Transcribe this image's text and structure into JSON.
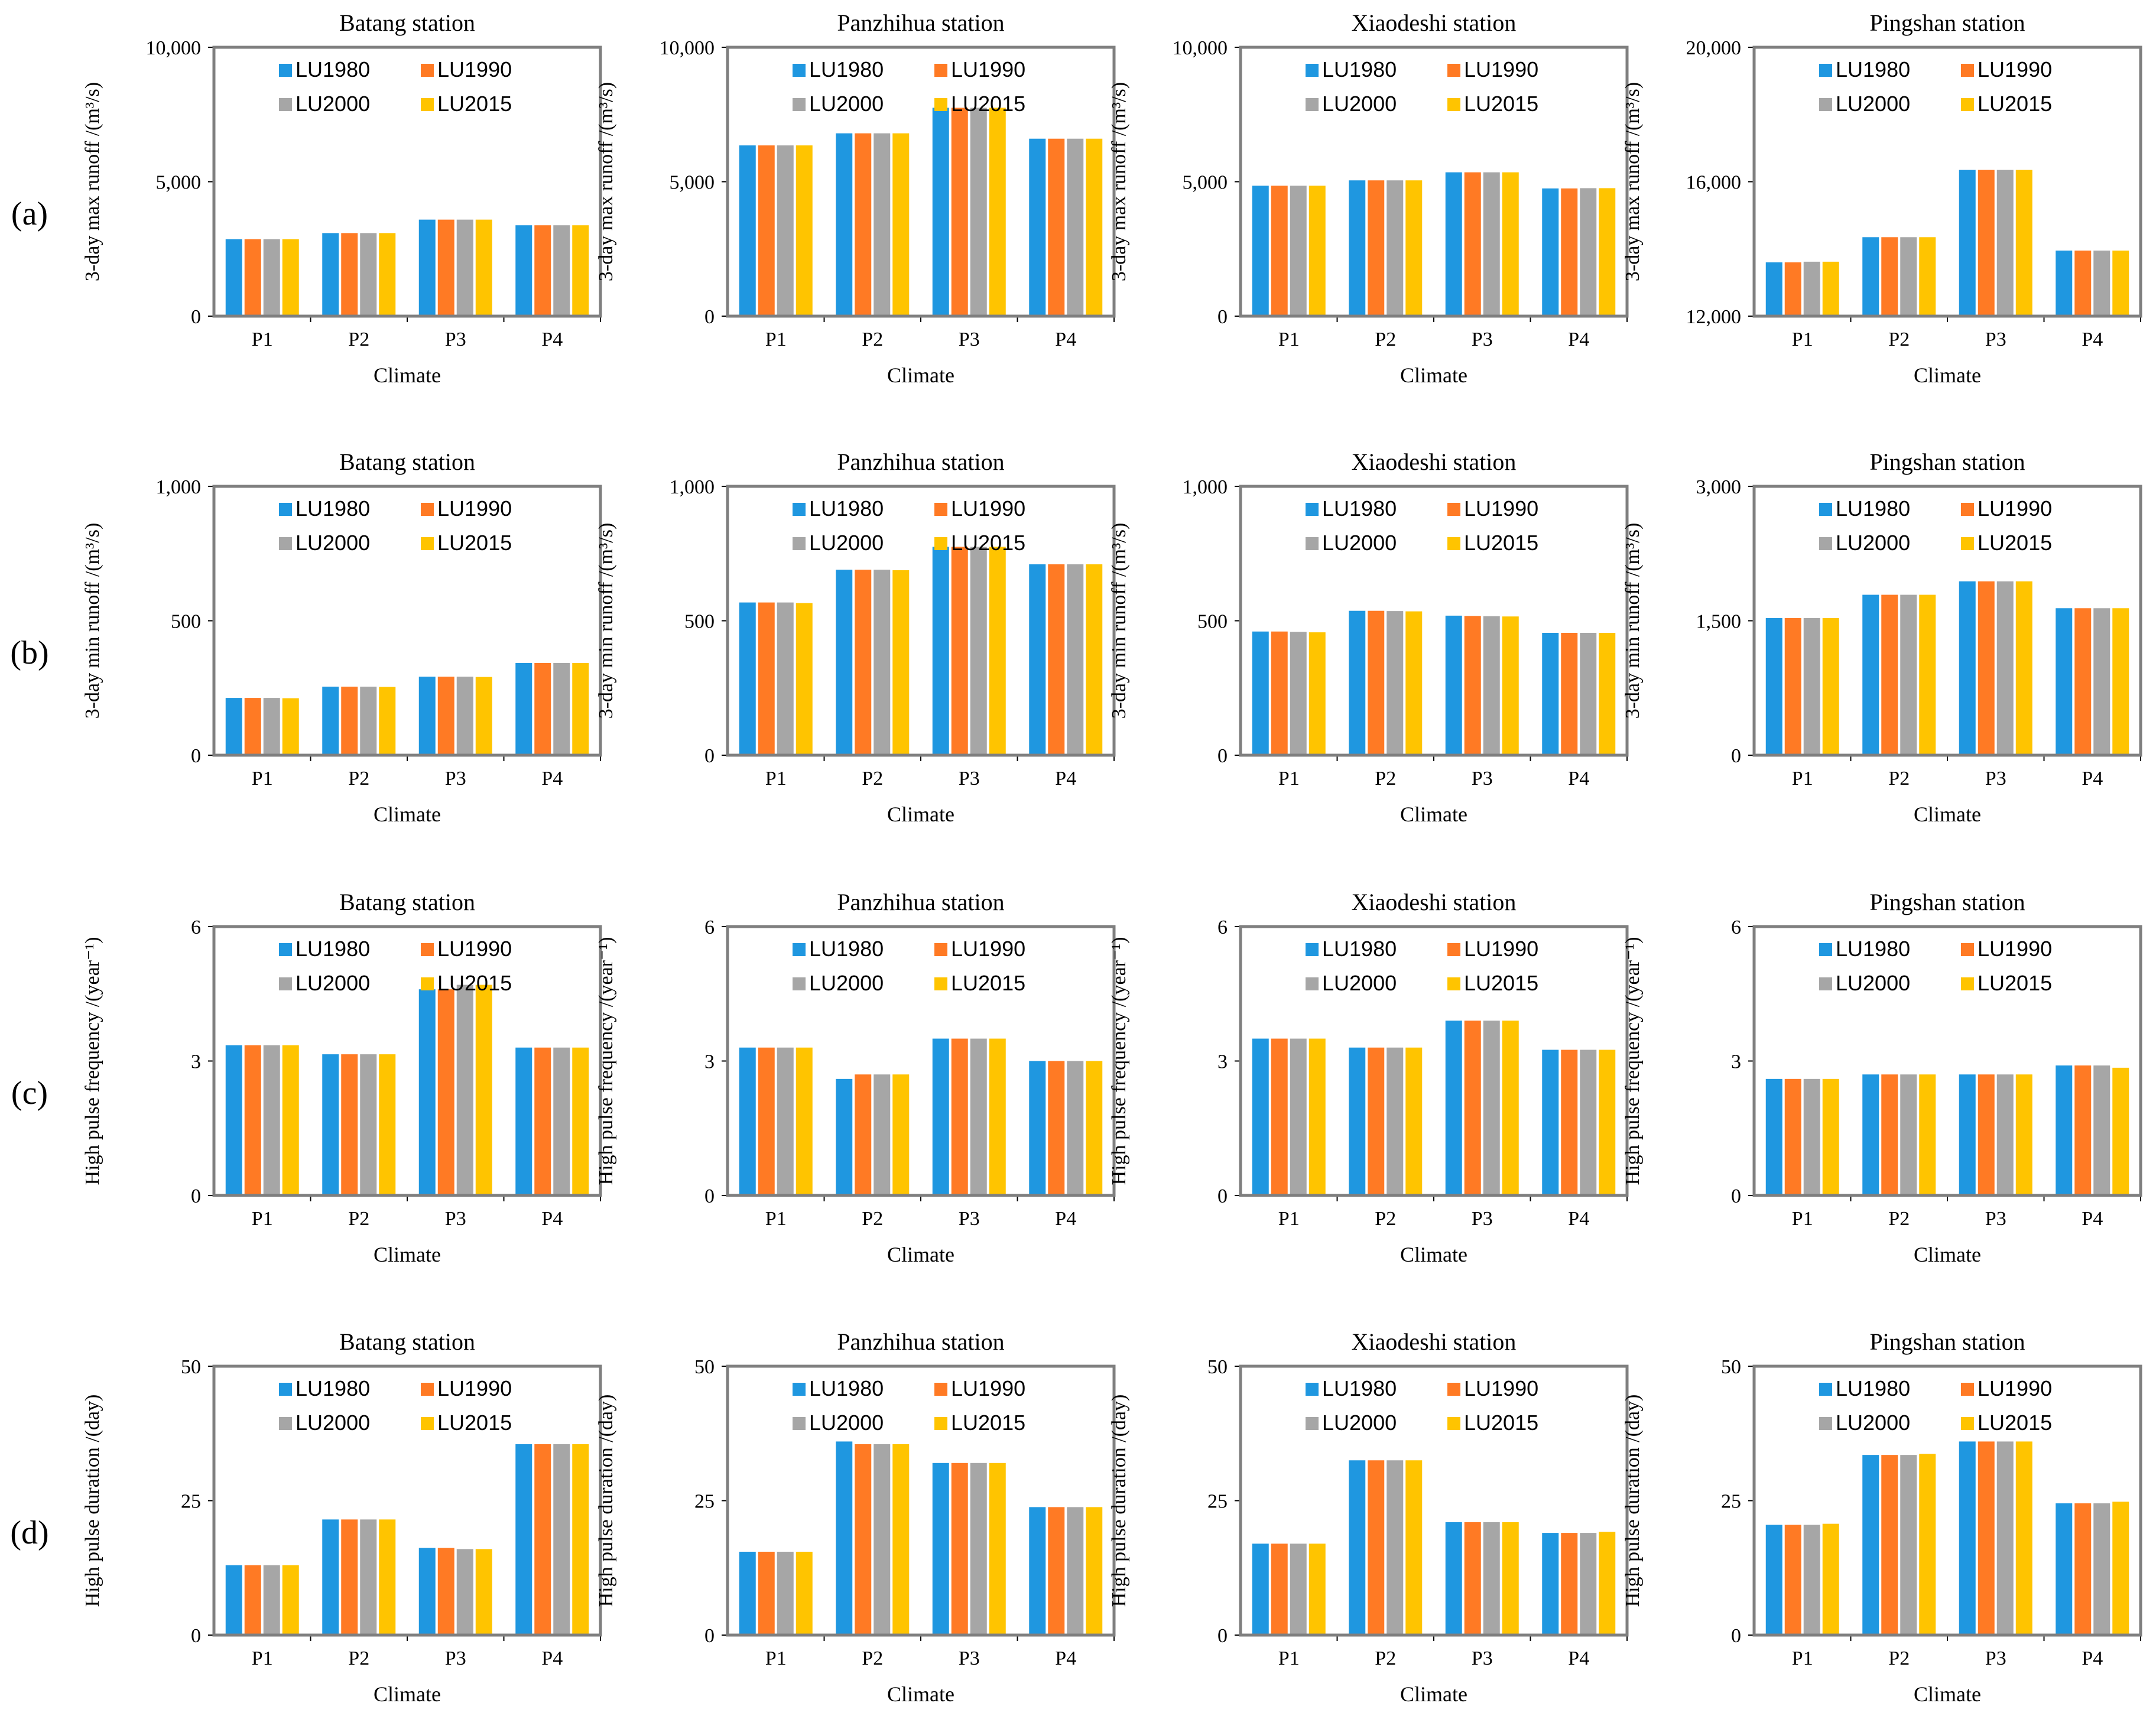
{
  "figure": {
    "row_labels": [
      "(a)",
      "(b)",
      "(c)",
      "(d)"
    ],
    "colors": {
      "LU1980": "#1f97e0",
      "LU1990": "#ff7a24",
      "LU2000": "#a6a6a6",
      "LU2015": "#ffc400"
    }
  },
  "chart_data": [
    {
      "type": "bar",
      "title": "Batang station",
      "xlabel": "Climate",
      "ylabel": "3-day max runoff /(m³/s)",
      "ylim": [
        0,
        10000
      ],
      "yticks": [
        0,
        5000,
        10000
      ],
      "ytick_labels": [
        "0",
        "5,000",
        "10,000"
      ],
      "categories": [
        "P1",
        "P2",
        "P3",
        "P4"
      ],
      "series": [
        {
          "name": "LU1980",
          "values": [
            2860,
            3090,
            3590,
            3380
          ]
        },
        {
          "name": "LU1990",
          "values": [
            2860,
            3090,
            3590,
            3380
          ]
        },
        {
          "name": "LU2000",
          "values": [
            2860,
            3090,
            3590,
            3380
          ]
        },
        {
          "name": "LU2015",
          "values": [
            2860,
            3090,
            3590,
            3380
          ]
        }
      ],
      "legend": "top"
    },
    {
      "type": "bar",
      "title": "Panzhihua station",
      "xlabel": "Climate",
      "ylabel": "3-day max runoff /(m³/s)",
      "ylim": [
        0,
        10000
      ],
      "yticks": [
        0,
        5000,
        10000
      ],
      "ytick_labels": [
        "0",
        "5,000",
        "10,000"
      ],
      "categories": [
        "P1",
        "P2",
        "P3",
        "P4"
      ],
      "series": [
        {
          "name": "LU1980",
          "values": [
            6350,
            6800,
            7750,
            6600
          ]
        },
        {
          "name": "LU1990",
          "values": [
            6350,
            6800,
            7750,
            6600
          ]
        },
        {
          "name": "LU2000",
          "values": [
            6350,
            6800,
            7750,
            6600
          ]
        },
        {
          "name": "LU2015",
          "values": [
            6350,
            6800,
            7750,
            6600
          ]
        }
      ],
      "legend": "top"
    },
    {
      "type": "bar",
      "title": "Xiaodeshi station",
      "xlabel": "Climate",
      "ylabel": "3-day max runoff /(m³/s)",
      "ylim": [
        0,
        10000
      ],
      "yticks": [
        0,
        5000,
        10000
      ],
      "ytick_labels": [
        "0",
        "5,000",
        "10,000"
      ],
      "categories": [
        "P1",
        "P2",
        "P3",
        "P4"
      ],
      "series": [
        {
          "name": "LU1980",
          "values": [
            4850,
            5050,
            5350,
            4750
          ]
        },
        {
          "name": "LU1990",
          "values": [
            4850,
            5050,
            5350,
            4750
          ]
        },
        {
          "name": "LU2000",
          "values": [
            4850,
            5050,
            5350,
            4760
          ]
        },
        {
          "name": "LU2015",
          "values": [
            4850,
            5050,
            5350,
            4760
          ]
        }
      ],
      "legend": "top"
    },
    {
      "type": "bar",
      "title": "Pingshan station",
      "xlabel": "Climate",
      "ylabel": "3-day max runoff /(m³/s)",
      "ylim": [
        12000,
        20000
      ],
      "yticks": [
        12000,
        16000,
        20000
      ],
      "ytick_labels": [
        "12,000",
        "16,000",
        "20,000"
      ],
      "categories": [
        "P1",
        "P2",
        "P3",
        "P4"
      ],
      "series": [
        {
          "name": "LU1980",
          "values": [
            13600,
            14350,
            16350,
            13950
          ]
        },
        {
          "name": "LU1990",
          "values": [
            13600,
            14350,
            16350,
            13950
          ]
        },
        {
          "name": "LU2000",
          "values": [
            13620,
            14350,
            16350,
            13950
          ]
        },
        {
          "name": "LU2015",
          "values": [
            13620,
            14350,
            16350,
            13950
          ]
        }
      ],
      "legend": "top"
    },
    {
      "type": "bar",
      "title": "Batang station",
      "xlabel": "Climate",
      "ylabel": "3-day min runoff /(m³/s)",
      "ylim": [
        0,
        1000
      ],
      "yticks": [
        0,
        500,
        1000
      ],
      "ytick_labels": [
        "0",
        "500",
        "1,000"
      ],
      "categories": [
        "P1",
        "P2",
        "P3",
        "P4"
      ],
      "series": [
        {
          "name": "LU1980",
          "values": [
            213,
            255,
            292,
            343
          ]
        },
        {
          "name": "LU1990",
          "values": [
            213,
            255,
            292,
            343
          ]
        },
        {
          "name": "LU2000",
          "values": [
            213,
            255,
            292,
            343
          ]
        },
        {
          "name": "LU2015",
          "values": [
            212,
            254,
            291,
            343
          ]
        }
      ],
      "legend": "top"
    },
    {
      "type": "bar",
      "title": "Panzhihua station",
      "xlabel": "Climate",
      "ylabel": "3-day min runoff /(m³/s)",
      "ylim": [
        0,
        1000
      ],
      "yticks": [
        0,
        500,
        1000
      ],
      "ytick_labels": [
        "0",
        "500",
        "1,000"
      ],
      "categories": [
        "P1",
        "P2",
        "P3",
        "P4"
      ],
      "series": [
        {
          "name": "LU1980",
          "values": [
            568,
            690,
            775,
            710
          ]
        },
        {
          "name": "LU1990",
          "values": [
            568,
            690,
            775,
            710
          ]
        },
        {
          "name": "LU2000",
          "values": [
            568,
            690,
            775,
            710
          ]
        },
        {
          "name": "LU2015",
          "values": [
            566,
            688,
            775,
            710
          ]
        }
      ],
      "legend": "top"
    },
    {
      "type": "bar",
      "title": "Xiaodeshi station",
      "xlabel": "Climate",
      "ylabel": "3-day min runoff /(m³/s)",
      "ylim": [
        0,
        1000
      ],
      "yticks": [
        0,
        500,
        1000
      ],
      "ytick_labels": [
        "0",
        "500",
        "1,000"
      ],
      "categories": [
        "P1",
        "P2",
        "P3",
        "P4"
      ],
      "series": [
        {
          "name": "LU1980",
          "values": [
            460,
            537,
            519,
            455
          ]
        },
        {
          "name": "LU1990",
          "values": [
            460,
            537,
            518,
            455
          ]
        },
        {
          "name": "LU2000",
          "values": [
            459,
            536,
            517,
            455
          ]
        },
        {
          "name": "LU2015",
          "values": [
            457,
            535,
            516,
            455
          ]
        }
      ],
      "legend": "top"
    },
    {
      "type": "bar",
      "title": "Pingshan station",
      "xlabel": "Climate",
      "ylabel": "3-day min runoff /(m³/s)",
      "ylim": [
        0,
        3000
      ],
      "yticks": [
        0,
        1500,
        3000
      ],
      "ytick_labels": [
        "0",
        "1,500",
        "3,000"
      ],
      "categories": [
        "P1",
        "P2",
        "P3",
        "P4"
      ],
      "series": [
        {
          "name": "LU1980",
          "values": [
            1530,
            1790,
            1940,
            1640
          ]
        },
        {
          "name": "LU1990",
          "values": [
            1530,
            1790,
            1940,
            1640
          ]
        },
        {
          "name": "LU2000",
          "values": [
            1530,
            1790,
            1940,
            1640
          ]
        },
        {
          "name": "LU2015",
          "values": [
            1530,
            1790,
            1940,
            1640
          ]
        }
      ],
      "legend": "top"
    },
    {
      "type": "bar",
      "title": "Batang station",
      "xlabel": "Climate",
      "ylabel": "High pulse frequency /(year⁻¹)",
      "ylim": [
        0,
        6
      ],
      "yticks": [
        0,
        3,
        6
      ],
      "ytick_labels": [
        "0",
        "3",
        "6"
      ],
      "categories": [
        "P1",
        "P2",
        "P3",
        "P4"
      ],
      "series": [
        {
          "name": "LU1980",
          "values": [
            3.35,
            3.15,
            4.6,
            3.3
          ]
        },
        {
          "name": "LU1990",
          "values": [
            3.35,
            3.15,
            4.6,
            3.3
          ]
        },
        {
          "name": "LU2000",
          "values": [
            3.35,
            3.15,
            4.7,
            3.3
          ]
        },
        {
          "name": "LU2015",
          "values": [
            3.35,
            3.15,
            4.7,
            3.3
          ]
        }
      ],
      "legend": "top"
    },
    {
      "type": "bar",
      "title": "Panzhihua station",
      "xlabel": "Climate",
      "ylabel": "High pulse frequency /(year⁻¹)",
      "ylim": [
        0,
        6
      ],
      "yticks": [
        0,
        3,
        6
      ],
      "ytick_labels": [
        "0",
        "3",
        "6"
      ],
      "categories": [
        "P1",
        "P2",
        "P3",
        "P4"
      ],
      "series": [
        {
          "name": "LU1980",
          "values": [
            3.3,
            2.6,
            3.5,
            3.0
          ]
        },
        {
          "name": "LU1990",
          "values": [
            3.3,
            2.7,
            3.5,
            3.0
          ]
        },
        {
          "name": "LU2000",
          "values": [
            3.3,
            2.7,
            3.5,
            3.0
          ]
        },
        {
          "name": "LU2015",
          "values": [
            3.3,
            2.7,
            3.5,
            3.0
          ]
        }
      ],
      "legend": "top"
    },
    {
      "type": "bar",
      "title": "Xiaodeshi station",
      "xlabel": "Climate",
      "ylabel": "High pulse frequency /(year⁻¹)",
      "ylim": [
        0,
        6
      ],
      "yticks": [
        0,
        3,
        6
      ],
      "ytick_labels": [
        "0",
        "3",
        "6"
      ],
      "categories": [
        "P1",
        "P2",
        "P3",
        "P4"
      ],
      "series": [
        {
          "name": "LU1980",
          "values": [
            3.5,
            3.3,
            3.9,
            3.25
          ]
        },
        {
          "name": "LU1990",
          "values": [
            3.5,
            3.3,
            3.9,
            3.25
          ]
        },
        {
          "name": "LU2000",
          "values": [
            3.5,
            3.3,
            3.9,
            3.25
          ]
        },
        {
          "name": "LU2015",
          "values": [
            3.5,
            3.3,
            3.9,
            3.25
          ]
        }
      ],
      "legend": "top"
    },
    {
      "type": "bar",
      "title": "Pingshan station",
      "xlabel": "Climate",
      "ylabel": "High pulse frequency /(year⁻¹)",
      "ylim": [
        0,
        6
      ],
      "yticks": [
        0,
        3,
        6
      ],
      "ytick_labels": [
        "0",
        "3",
        "6"
      ],
      "categories": [
        "P1",
        "P2",
        "P3",
        "P4"
      ],
      "series": [
        {
          "name": "LU1980",
          "values": [
            2.6,
            2.7,
            2.7,
            2.9
          ]
        },
        {
          "name": "LU1990",
          "values": [
            2.6,
            2.7,
            2.7,
            2.9
          ]
        },
        {
          "name": "LU2000",
          "values": [
            2.6,
            2.7,
            2.7,
            2.9
          ]
        },
        {
          "name": "LU2015",
          "values": [
            2.6,
            2.7,
            2.7,
            2.85
          ]
        }
      ],
      "legend": "top"
    },
    {
      "type": "bar",
      "title": "Batang station",
      "xlabel": "Climate",
      "ylabel": "High pulse duration /(day)",
      "ylim": [
        0,
        50
      ],
      "yticks": [
        0,
        25,
        50
      ],
      "ytick_labels": [
        "0",
        "25",
        "50"
      ],
      "categories": [
        "P1",
        "P2",
        "P3",
        "P4"
      ],
      "series": [
        {
          "name": "LU1980",
          "values": [
            13,
            21.5,
            16.2,
            35.5
          ]
        },
        {
          "name": "LU1990",
          "values": [
            13,
            21.5,
            16.2,
            35.5
          ]
        },
        {
          "name": "LU2000",
          "values": [
            13,
            21.5,
            16,
            35.5
          ]
        },
        {
          "name": "LU2015",
          "values": [
            13,
            21.5,
            16,
            35.5
          ]
        }
      ],
      "legend": "top"
    },
    {
      "type": "bar",
      "title": "Panzhihua station",
      "xlabel": "Climate",
      "ylabel": "High pulse duration /(day)",
      "ylim": [
        0,
        50
      ],
      "yticks": [
        0,
        25,
        50
      ],
      "ytick_labels": [
        "0",
        "25",
        "50"
      ],
      "categories": [
        "P1",
        "P2",
        "P3",
        "P4"
      ],
      "series": [
        {
          "name": "LU1980",
          "values": [
            15.5,
            36,
            32,
            23.8
          ]
        },
        {
          "name": "LU1990",
          "values": [
            15.5,
            35.5,
            32,
            23.8
          ]
        },
        {
          "name": "LU2000",
          "values": [
            15.5,
            35.5,
            32,
            23.8
          ]
        },
        {
          "name": "LU2015",
          "values": [
            15.5,
            35.5,
            32,
            23.8
          ]
        }
      ],
      "legend": "top"
    },
    {
      "type": "bar",
      "title": "Xiaodeshi station",
      "xlabel": "Climate",
      "ylabel": "High pulse duration /(day)",
      "ylim": [
        0,
        50
      ],
      "yticks": [
        0,
        25,
        50
      ],
      "ytick_labels": [
        "0",
        "25",
        "50"
      ],
      "categories": [
        "P1",
        "P2",
        "P3",
        "P4"
      ],
      "series": [
        {
          "name": "LU1980",
          "values": [
            17,
            32.5,
            21,
            19
          ]
        },
        {
          "name": "LU1990",
          "values": [
            17,
            32.5,
            21,
            19
          ]
        },
        {
          "name": "LU2000",
          "values": [
            17,
            32.5,
            21,
            19
          ]
        },
        {
          "name": "LU2015",
          "values": [
            17,
            32.5,
            21,
            19.2
          ]
        }
      ],
      "legend": "top"
    },
    {
      "type": "bar",
      "title": "Pingshan station",
      "xlabel": "Climate",
      "ylabel": "High pulse duration /(day)",
      "ylim": [
        0,
        50
      ],
      "yticks": [
        0,
        25,
        50
      ],
      "ytick_labels": [
        "0",
        "25",
        "50"
      ],
      "categories": [
        "P1",
        "P2",
        "P3",
        "P4"
      ],
      "series": [
        {
          "name": "LU1980",
          "values": [
            20.5,
            33.5,
            36,
            24.5
          ]
        },
        {
          "name": "LU1990",
          "values": [
            20.5,
            33.5,
            36,
            24.5
          ]
        },
        {
          "name": "LU2000",
          "values": [
            20.5,
            33.5,
            36,
            24.5
          ]
        },
        {
          "name": "LU2015",
          "values": [
            20.7,
            33.7,
            36,
            24.8
          ]
        }
      ],
      "legend": "top"
    }
  ]
}
